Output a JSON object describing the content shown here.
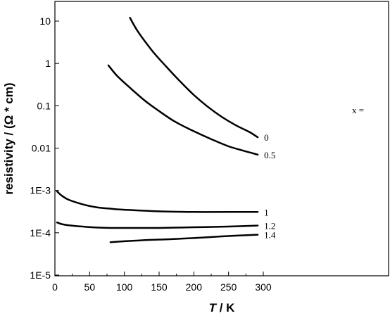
{
  "chart_data": {
    "type": "line",
    "title": "",
    "xlabel_italic": "T",
    "xlabel_rest": " / K",
    "ylabel": "resistivity / (Ω * cm)",
    "xlim": [
      0,
      320
    ],
    "ylim": [
      1e-05,
      30
    ],
    "yscale": "log",
    "grid": false,
    "legend_title": "x =",
    "x_ticks": [
      {
        "value": 0,
        "label": "0"
      },
      {
        "value": 50,
        "label": "50"
      },
      {
        "value": 100,
        "label": "100"
      },
      {
        "value": 150,
        "label": "150"
      },
      {
        "value": 200,
        "label": "200"
      },
      {
        "value": 250,
        "label": "250"
      },
      {
        "value": 300,
        "label": "300"
      }
    ],
    "y_ticks": [
      {
        "value": 10,
        "label": "10"
      },
      {
        "value": 1,
        "label": "1"
      },
      {
        "value": 0.1,
        "label": "0.1"
      },
      {
        "value": 0.01,
        "label": "0.01"
      },
      {
        "value": 0.001,
        "label": "1E-3"
      },
      {
        "value": 0.0001,
        "label": "1E-4"
      },
      {
        "value": 1e-05,
        "label": "1E-5"
      }
    ],
    "series": [
      {
        "name": "0",
        "x": [
          108,
          120,
          140,
          160,
          180,
          200,
          220,
          240,
          260,
          280,
          292
        ],
        "y": [
          12,
          5.5,
          2.0,
          0.85,
          0.38,
          0.18,
          0.095,
          0.055,
          0.035,
          0.024,
          0.018
        ]
      },
      {
        "name": "0.5",
        "x": [
          77,
          90,
          110,
          130,
          150,
          170,
          190,
          210,
          230,
          250,
          270,
          292
        ],
        "y": [
          0.9,
          0.5,
          0.25,
          0.13,
          0.075,
          0.045,
          0.03,
          0.021,
          0.015,
          0.011,
          0.0088,
          0.007
        ]
      },
      {
        "name": "1",
        "x": [
          3,
          10,
          20,
          40,
          60,
          80,
          100,
          150,
          200,
          250,
          292
        ],
        "y": [
          0.00095,
          0.00075,
          0.0006,
          0.00047,
          0.0004,
          0.00037,
          0.00035,
          0.00032,
          0.00031,
          0.00031,
          0.00031
        ]
      },
      {
        "name": "1.2",
        "x": [
          3,
          10,
          20,
          40,
          60,
          80,
          100,
          150,
          200,
          250,
          292
        ],
        "y": [
          0.000175,
          0.00016,
          0.00015,
          0.00014,
          0.000133,
          0.00013,
          0.00013,
          0.00013,
          0.000135,
          0.00014,
          0.000148
        ]
      },
      {
        "name": "1.4",
        "x": [
          80,
          100,
          130,
          160,
          200,
          240,
          292
        ],
        "y": [
          6e-05,
          6.3e-05,
          6.7e-05,
          7e-05,
          7.5e-05,
          8.2e-05,
          9e-05
        ]
      }
    ]
  }
}
